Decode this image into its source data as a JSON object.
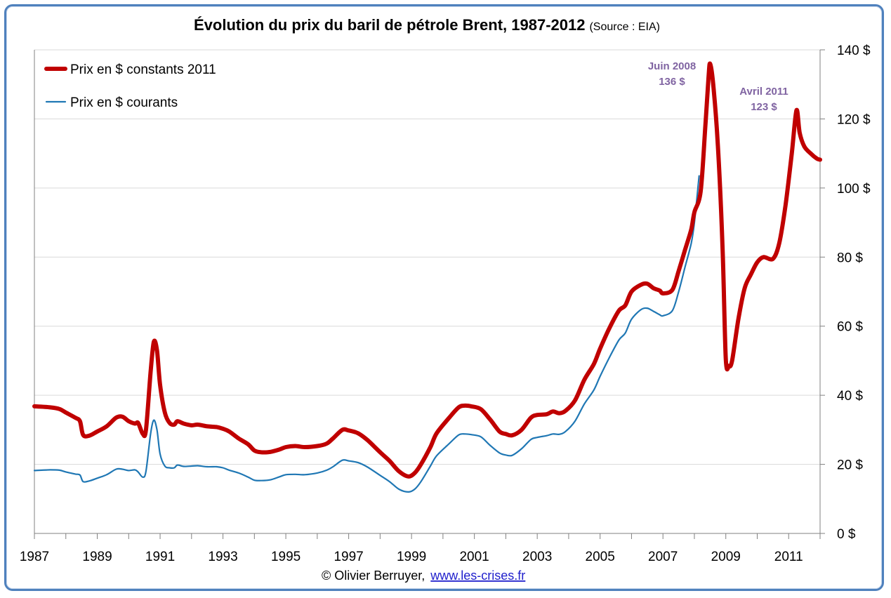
{
  "chart_data": {
    "type": "line",
    "title": "Évolution du prix du baril de pétrole Brent, 1987-2012",
    "subtitle": "(Source : EIA)",
    "xlim": [
      1987,
      2012
    ],
    "ylim": [
      0,
      140
    ],
    "x_ticks": [
      "1987",
      "1989",
      "1991",
      "1993",
      "1995",
      "1997",
      "1999",
      "2001",
      "2003",
      "2005",
      "2007",
      "2009",
      "2011"
    ],
    "y_ticks": [
      "0 $",
      "20 $",
      "40 $",
      "60 $",
      "80 $",
      "100 $",
      "120 $",
      "140 $"
    ],
    "y_tick_values": [
      0,
      20,
      40,
      60,
      80,
      100,
      120,
      140
    ],
    "grid": "horizontal",
    "legend_position": "top-left",
    "series": [
      {
        "name": "Prix en $ constants 2011",
        "color": "#c00000",
        "points": [
          [
            1987.0,
            36.8
          ],
          [
            1987.5,
            36.5
          ],
          [
            1987.8,
            36.0
          ],
          [
            1988.0,
            35.0
          ],
          [
            1988.3,
            33.5
          ],
          [
            1988.45,
            32.5
          ],
          [
            1988.55,
            28.5
          ],
          [
            1988.75,
            28.3
          ],
          [
            1989.0,
            29.5
          ],
          [
            1989.3,
            31.0
          ],
          [
            1989.6,
            33.5
          ],
          [
            1989.8,
            33.8
          ],
          [
            1990.0,
            32.5
          ],
          [
            1990.2,
            31.8
          ],
          [
            1990.3,
            32.0
          ],
          [
            1990.45,
            28.8
          ],
          [
            1990.55,
            30.0
          ],
          [
            1990.7,
            47.0
          ],
          [
            1990.8,
            55.5
          ],
          [
            1990.9,
            53.0
          ],
          [
            1991.0,
            43.0
          ],
          [
            1991.15,
            35.0
          ],
          [
            1991.3,
            32.0
          ],
          [
            1991.45,
            31.5
          ],
          [
            1991.55,
            32.5
          ],
          [
            1991.75,
            31.8
          ],
          [
            1992.0,
            31.3
          ],
          [
            1992.2,
            31.5
          ],
          [
            1992.5,
            31.0
          ],
          [
            1992.8,
            30.8
          ],
          [
            1993.0,
            30.3
          ],
          [
            1993.2,
            29.5
          ],
          [
            1993.5,
            27.5
          ],
          [
            1993.8,
            25.8
          ],
          [
            1994.0,
            24.0
          ],
          [
            1994.2,
            23.5
          ],
          [
            1994.5,
            23.6
          ],
          [
            1994.8,
            24.3
          ],
          [
            1995.0,
            25.0
          ],
          [
            1995.3,
            25.3
          ],
          [
            1995.6,
            25.0
          ],
          [
            1996.0,
            25.3
          ],
          [
            1996.3,
            26.0
          ],
          [
            1996.5,
            27.5
          ],
          [
            1996.8,
            30.0
          ],
          [
            1997.0,
            29.8
          ],
          [
            1997.3,
            29.0
          ],
          [
            1997.6,
            27.0
          ],
          [
            1998.0,
            23.5
          ],
          [
            1998.3,
            21.0
          ],
          [
            1998.6,
            18.0
          ],
          [
            1998.9,
            16.5
          ],
          [
            1999.1,
            17.5
          ],
          [
            1999.3,
            20.0
          ],
          [
            1999.6,
            25.0
          ],
          [
            1999.8,
            29.0
          ],
          [
            2000.2,
            33.5
          ],
          [
            2000.5,
            36.5
          ],
          [
            2000.7,
            37.0
          ],
          [
            2000.9,
            36.8
          ],
          [
            2001.2,
            36.0
          ],
          [
            2001.5,
            33.0
          ],
          [
            2001.8,
            29.5
          ],
          [
            2002.0,
            28.8
          ],
          [
            2002.2,
            28.4
          ],
          [
            2002.5,
            30.0
          ],
          [
            2002.8,
            33.5
          ],
          [
            2003.0,
            34.3
          ],
          [
            2003.3,
            34.5
          ],
          [
            2003.5,
            35.3
          ],
          [
            2003.7,
            34.8
          ],
          [
            2003.9,
            35.5
          ],
          [
            2004.2,
            38.5
          ],
          [
            2004.5,
            44.5
          ],
          [
            2004.8,
            49.0
          ],
          [
            2005.0,
            53.5
          ],
          [
            2005.3,
            59.5
          ],
          [
            2005.6,
            64.5
          ],
          [
            2005.8,
            66.0
          ],
          [
            2006.0,
            70.0
          ],
          [
            2006.3,
            72.0
          ],
          [
            2006.5,
            72.3
          ],
          [
            2006.7,
            71.0
          ],
          [
            2006.9,
            70.3
          ],
          [
            2007.0,
            69.5
          ],
          [
            2007.3,
            70.5
          ],
          [
            2007.5,
            76.0
          ],
          [
            2007.7,
            82.0
          ],
          [
            2007.9,
            88.0
          ],
          [
            2008.0,
            93.0
          ],
          [
            2008.2,
            99.0
          ],
          [
            2008.35,
            118.0
          ],
          [
            2008.45,
            132.0
          ],
          [
            2008.5,
            136.0
          ],
          [
            2008.6,
            130.0
          ],
          [
            2008.75,
            112.0
          ],
          [
            2008.9,
            82.0
          ],
          [
            2009.0,
            50.5
          ],
          [
            2009.1,
            48.5
          ],
          [
            2009.2,
            50.0
          ],
          [
            2009.4,
            62.0
          ],
          [
            2009.6,
            71.0
          ],
          [
            2009.8,
            75.0
          ],
          [
            2010.0,
            78.5
          ],
          [
            2010.2,
            80.0
          ],
          [
            2010.5,
            79.5
          ],
          [
            2010.7,
            84.0
          ],
          [
            2010.9,
            95.0
          ],
          [
            2011.1,
            110.0
          ],
          [
            2011.25,
            122.5
          ],
          [
            2011.35,
            116.0
          ],
          [
            2011.5,
            112.0
          ],
          [
            2011.7,
            110.0
          ],
          [
            2011.9,
            108.5
          ],
          [
            2012.0,
            108.2
          ]
        ]
      },
      {
        "name": "Prix en $ courants",
        "color": "#1f77b4",
        "points": [
          [
            1987.0,
            18.2
          ],
          [
            1987.5,
            18.4
          ],
          [
            1987.8,
            18.3
          ],
          [
            1988.0,
            17.8
          ],
          [
            1988.3,
            17.2
          ],
          [
            1988.45,
            16.9
          ],
          [
            1988.55,
            15.0
          ],
          [
            1988.75,
            15.2
          ],
          [
            1989.0,
            16.0
          ],
          [
            1989.3,
            17.0
          ],
          [
            1989.6,
            18.6
          ],
          [
            1989.8,
            18.6
          ],
          [
            1990.0,
            18.2
          ],
          [
            1990.2,
            18.4
          ],
          [
            1990.3,
            17.8
          ],
          [
            1990.45,
            16.3
          ],
          [
            1990.55,
            18.0
          ],
          [
            1990.7,
            29.0
          ],
          [
            1990.8,
            32.8
          ],
          [
            1990.9,
            30.0
          ],
          [
            1991.0,
            23.0
          ],
          [
            1991.15,
            19.5
          ],
          [
            1991.3,
            19.0
          ],
          [
            1991.45,
            19.0
          ],
          [
            1991.55,
            19.8
          ],
          [
            1991.75,
            19.4
          ],
          [
            1992.0,
            19.5
          ],
          [
            1992.2,
            19.6
          ],
          [
            1992.5,
            19.3
          ],
          [
            1992.8,
            19.3
          ],
          [
            1993.0,
            19.0
          ],
          [
            1993.2,
            18.3
          ],
          [
            1993.5,
            17.5
          ],
          [
            1993.8,
            16.3
          ],
          [
            1994.0,
            15.4
          ],
          [
            1994.2,
            15.3
          ],
          [
            1994.5,
            15.5
          ],
          [
            1994.8,
            16.4
          ],
          [
            1995.0,
            17.0
          ],
          [
            1995.3,
            17.1
          ],
          [
            1995.6,
            17.0
          ],
          [
            1996.0,
            17.5
          ],
          [
            1996.3,
            18.3
          ],
          [
            1996.5,
            19.3
          ],
          [
            1996.8,
            21.2
          ],
          [
            1997.0,
            21.0
          ],
          [
            1997.3,
            20.5
          ],
          [
            1997.6,
            19.2
          ],
          [
            1998.0,
            16.8
          ],
          [
            1998.3,
            15.0
          ],
          [
            1998.6,
            12.8
          ],
          [
            1998.9,
            12.0
          ],
          [
            1999.1,
            12.8
          ],
          [
            1999.3,
            15.0
          ],
          [
            1999.6,
            19.5
          ],
          [
            1999.8,
            22.5
          ],
          [
            2000.2,
            26.0
          ],
          [
            2000.5,
            28.5
          ],
          [
            2000.7,
            28.8
          ],
          [
            2000.9,
            28.6
          ],
          [
            2001.2,
            28.0
          ],
          [
            2001.5,
            25.5
          ],
          [
            2001.8,
            23.3
          ],
          [
            2002.0,
            22.7
          ],
          [
            2002.2,
            22.6
          ],
          [
            2002.5,
            24.5
          ],
          [
            2002.8,
            27.2
          ],
          [
            2003.0,
            27.8
          ],
          [
            2003.3,
            28.3
          ],
          [
            2003.5,
            28.8
          ],
          [
            2003.7,
            28.7
          ],
          [
            2003.9,
            29.5
          ],
          [
            2004.2,
            32.5
          ],
          [
            2004.5,
            37.5
          ],
          [
            2004.8,
            41.5
          ],
          [
            2005.0,
            45.5
          ],
          [
            2005.3,
            51.0
          ],
          [
            2005.6,
            56.0
          ],
          [
            2005.8,
            58.0
          ],
          [
            2006.0,
            62.0
          ],
          [
            2006.3,
            64.8
          ],
          [
            2006.5,
            65.2
          ],
          [
            2006.7,
            64.3
          ],
          [
            2006.9,
            63.3
          ],
          [
            2007.0,
            63.0
          ],
          [
            2007.3,
            64.5
          ],
          [
            2007.5,
            70.0
          ],
          [
            2007.7,
            77.0
          ],
          [
            2007.9,
            84.0
          ],
          [
            2008.0,
            90.0
          ],
          [
            2008.15,
            103.5
          ]
        ]
      }
    ],
    "annotations": [
      {
        "label_line1": "Juin 2008",
        "label_line2": "136 $",
        "x": 2008.1,
        "y": 136
      },
      {
        "label_line1": "Avril 2011",
        "label_line2": "123 $",
        "x": 2010.5,
        "y": 123
      }
    ]
  },
  "footer": {
    "credit": "© Olivier Berruyer,",
    "link": "www.les-crises.fr"
  }
}
